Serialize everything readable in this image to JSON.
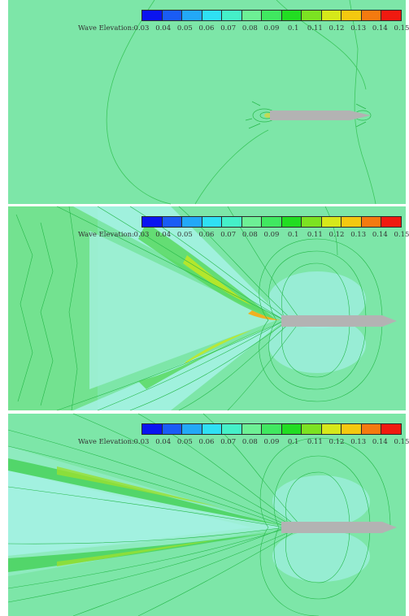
{
  "legend": {
    "title": "Wave Elevation:",
    "ticks": [
      "0.03",
      "0.04",
      "0.05",
      "0.06",
      "0.07",
      "0.08",
      "0.09",
      "0.1",
      "0.11",
      "0.12",
      "0.13",
      "0.14",
      "0.15"
    ],
    "colors": [
      "#0a14f0",
      "#1a5cf5",
      "#23a8f7",
      "#2fe0f4",
      "#45f0c8",
      "#6df095",
      "#40e860",
      "#22dd22",
      "#7ce222",
      "#d6e81a",
      "#f4c810",
      "#f47a10",
      "#f01a10"
    ]
  },
  "panels": [
    {
      "id": "panel-1",
      "background": "#7de6a8",
      "ship_color": "#b3b3b3"
    },
    {
      "id": "panel-2",
      "background": "#7de6a8",
      "ship_color": "#b3b3b3"
    },
    {
      "id": "panel-3",
      "background": "#7de6a8",
      "ship_color": "#b3b3b3"
    }
  ]
}
